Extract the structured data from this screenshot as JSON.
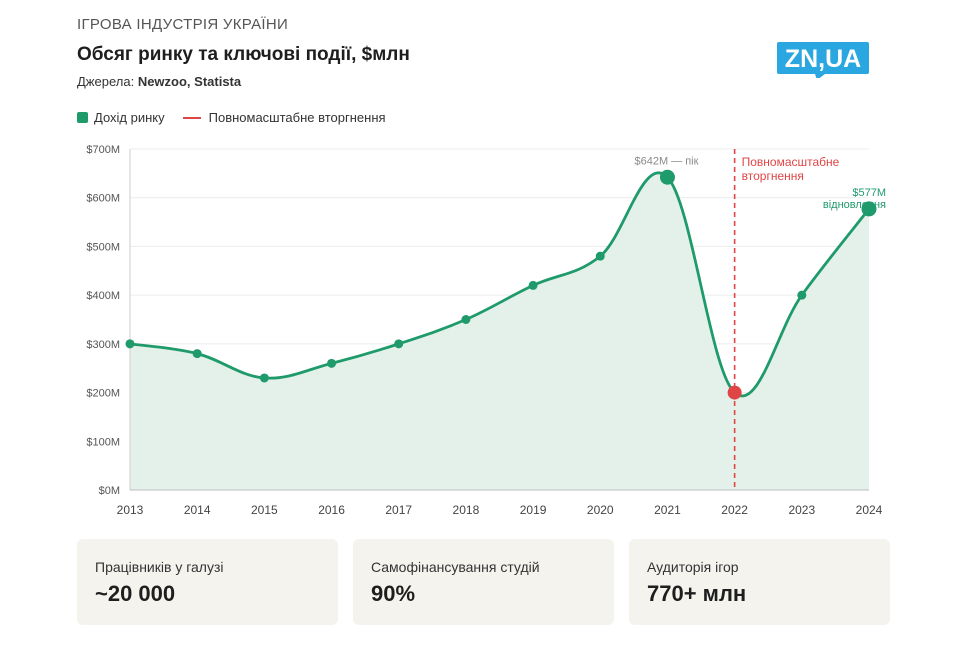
{
  "header": {
    "kicker": "ІГРОВА ІНДУСТРІЯ УКРАЇНИ",
    "title": "Обсяг ринку та ключові події, $млн",
    "sources_label": "Джерела:",
    "sources_value": "Newzoo, Statista",
    "logo_text": "ZN,UA"
  },
  "legend": {
    "revenue": "Дохід ринку",
    "invasion": "Повномасштабне вторгнення"
  },
  "colors": {
    "line": "#1f9a6b",
    "fill": "#e4f1ea",
    "event": "#e04545",
    "logo": "#2aa6e0"
  },
  "chart_data": {
    "type": "line",
    "x": [
      2013,
      2014,
      2015,
      2016,
      2017,
      2018,
      2019,
      2020,
      2021,
      2022,
      2023,
      2024
    ],
    "series": [
      {
        "name": "Дохід ринку",
        "values": [
          300,
          280,
          230,
          260,
          300,
          350,
          420,
          480,
          642,
          200,
          400,
          577
        ]
      }
    ],
    "ylim": [
      0,
      700
    ],
    "yticks": [
      0,
      100,
      200,
      300,
      400,
      500,
      600,
      700
    ],
    "ytick_labels": [
      "$0M",
      "$100M",
      "$200M",
      "$300M",
      "$400M",
      "$500M",
      "$600M",
      "$700M"
    ],
    "grid": true,
    "event": {
      "x": 2022,
      "label_line1": "Повномасштабне",
      "label_line2": "вторгнення"
    },
    "annotations": {
      "peak": "$642M — пік",
      "recovery_value": "$577M",
      "recovery_text": "відновлення"
    }
  },
  "stats": [
    {
      "label": "Працівників у галузі",
      "value": "~20 000"
    },
    {
      "label": "Самофінансування студій",
      "value": "90%"
    },
    {
      "label": "Аудиторія ігор",
      "value": "770+ млн"
    }
  ]
}
